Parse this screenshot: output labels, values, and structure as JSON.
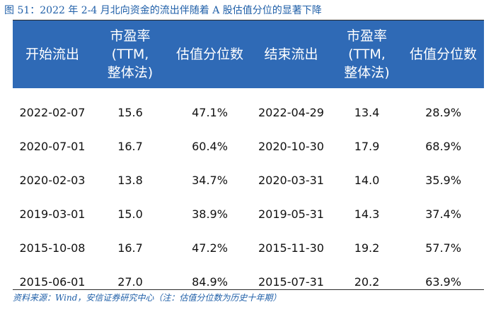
{
  "figure": {
    "caption": "图 51：2022 年 2-4 月北向资金的流出伴随着 A 股估值分位的显著下降",
    "source": "资料来源：Wind，安信证券研究中心（注：估值分位数为历史十年期）"
  },
  "table": {
    "headers": [
      "开始流出",
      "市盈率(TTM,\n整体法)",
      "估值分位数",
      "结束流出",
      "市盈率(TTM,\n整体法)",
      "估值分位数"
    ],
    "rows": [
      [
        "2022-02-07",
        "15.6",
        "47.1%",
        "2022-04-29",
        "13.4",
        "28.9%"
      ],
      [
        "2020-07-01",
        "16.7",
        "60.4%",
        "2020-10-30",
        "17.9",
        "68.9%"
      ],
      [
        "2020-02-03",
        "13.8",
        "34.7%",
        "2020-03-31",
        "14.0",
        "35.9%"
      ],
      [
        "2019-03-01",
        "15.0",
        "38.9%",
        "2019-05-31",
        "14.3",
        "37.4%"
      ],
      [
        "2015-10-08",
        "16.7",
        "47.2%",
        "2015-11-30",
        "19.2",
        "57.7%"
      ],
      [
        "2015-06-01",
        "27.0",
        "84.9%",
        "2015-07-31",
        "20.2",
        "63.9%"
      ]
    ]
  },
  "colors": {
    "header_bg": "#2f6ab6",
    "header_text": "#ffffff",
    "caption_text": "#1f5fa8",
    "body_text": "#111111"
  }
}
